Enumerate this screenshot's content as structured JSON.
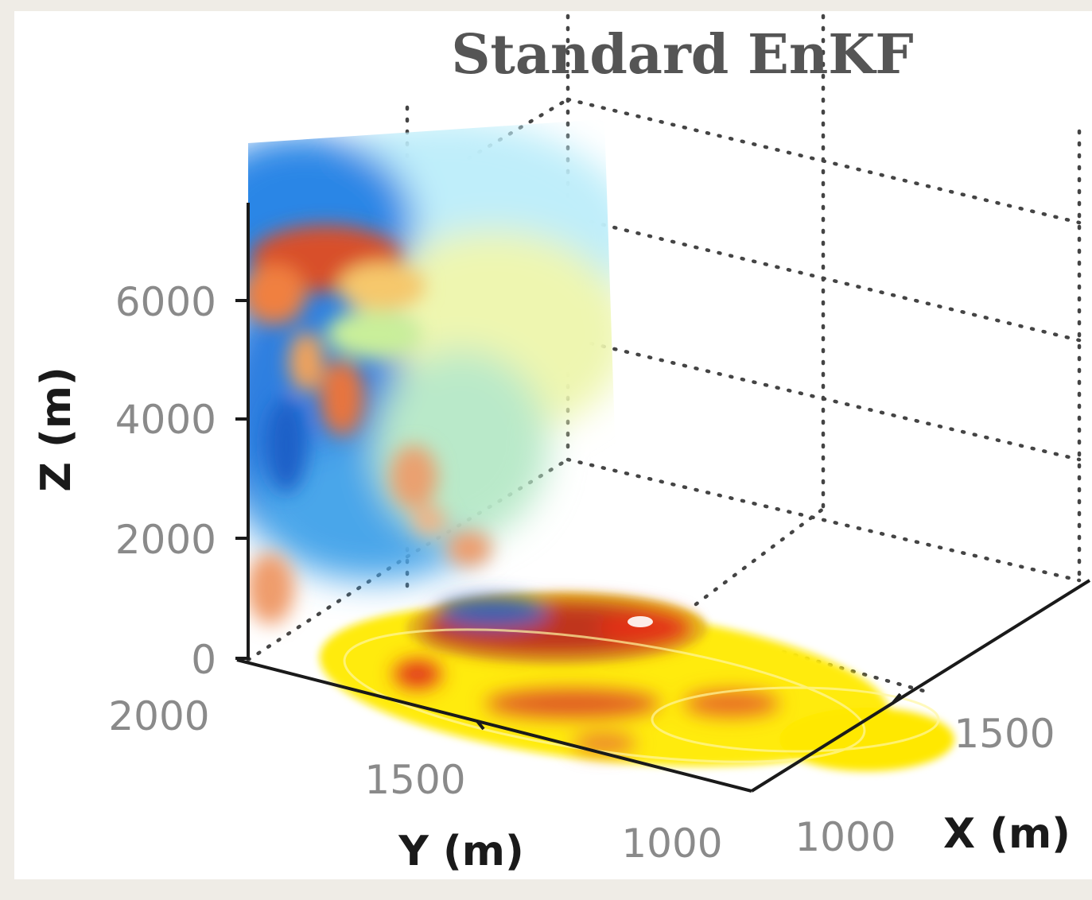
{
  "chart_data": {
    "type": "3d-surface",
    "title": "Standard EnKF",
    "xlabel": "X (m)",
    "ylabel": "Y (m)",
    "zlabel": "Z (m)",
    "x_ticks": [
      "1000",
      "1500"
    ],
    "y_ticks": [
      "2000",
      "1500",
      "1000"
    ],
    "z_ticks": [
      "0",
      "2000",
      "4000",
      "6000"
    ],
    "zlim": [
      0,
      6000
    ],
    "grid": "dotted",
    "colors": {
      "background": "#efece6",
      "plot_area": "#ffffff",
      "low": "#1e78e0",
      "mid": "#e8f5a0",
      "high": "#d63c1e",
      "plume": "#ffe800"
    }
  }
}
